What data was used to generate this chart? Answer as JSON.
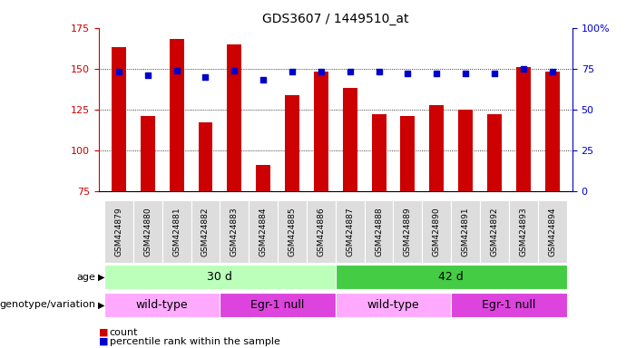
{
  "title": "GDS3607 / 1449510_at",
  "samples": [
    "GSM424879",
    "GSM424880",
    "GSM424881",
    "GSM424882",
    "GSM424883",
    "GSM424884",
    "GSM424885",
    "GSM424886",
    "GSM424887",
    "GSM424888",
    "GSM424889",
    "GSM424890",
    "GSM424891",
    "GSM424892",
    "GSM424893",
    "GSM424894"
  ],
  "count_values": [
    163,
    121,
    168,
    117,
    165,
    91,
    134,
    148,
    138,
    122,
    121,
    128,
    125,
    122,
    151,
    148
  ],
  "percentile_values": [
    73,
    71,
    74,
    70,
    74,
    68,
    73,
    73,
    73,
    73,
    72,
    72,
    72,
    72,
    75,
    73
  ],
  "ylim_left": [
    75,
    175
  ],
  "ylim_right": [
    0,
    100
  ],
  "yticks_left": [
    75,
    100,
    125,
    150,
    175
  ],
  "yticks_right": [
    0,
    25,
    50,
    75,
    100
  ],
  "yticklabels_right": [
    "0",
    "25",
    "50",
    "75",
    "100%"
  ],
  "bar_color": "#cc0000",
  "dot_color": "#0000cc",
  "bar_width": 0.5,
  "age_row": [
    {
      "label": "30 d",
      "start": 0,
      "end": 8,
      "color": "#bbffbb"
    },
    {
      "label": "42 d",
      "start": 8,
      "end": 16,
      "color": "#44cc44"
    }
  ],
  "genotype_row": [
    {
      "label": "wild-type",
      "start": 0,
      "end": 4,
      "color": "#ffaaff"
    },
    {
      "label": "Egr-1 null",
      "start": 4,
      "end": 8,
      "color": "#dd44dd"
    },
    {
      "label": "wild-type",
      "start": 8,
      "end": 12,
      "color": "#ffaaff"
    },
    {
      "label": "Egr-1 null",
      "start": 12,
      "end": 16,
      "color": "#dd44dd"
    }
  ],
  "age_label": "age",
  "genotype_label": "genotype/variation",
  "legend_count_label": "count",
  "legend_pct_label": "percentile rank within the sample",
  "grid_color": "#000000",
  "tick_label_color_left": "#cc0000",
  "tick_label_color_right": "#0000cc",
  "background_color": "#ffffff",
  "plot_bg_color": "#ffffff",
  "xtick_bg_color": "#dddddd"
}
